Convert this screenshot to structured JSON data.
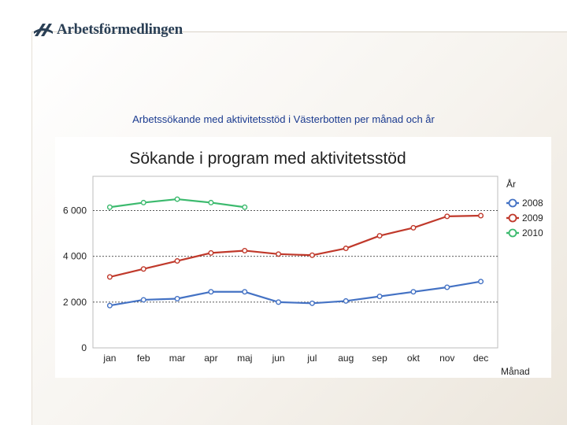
{
  "brand": {
    "name": "Arbetsförmedlingen",
    "logo_icon": "crossed-stripes-logo-icon",
    "color": "#2a3f55"
  },
  "page": {
    "title": "Arbetssökande med aktivitetsstöd i Västerbotten per månad och år"
  },
  "chart_data": {
    "type": "line",
    "title": "Sökande i program med aktivitetsstöd",
    "xlabel": "Månad",
    "ylabel": "",
    "legend_title": "År",
    "legend_position": "right",
    "categories": [
      "jan",
      "feb",
      "mar",
      "apr",
      "maj",
      "jun",
      "jul",
      "aug",
      "sep",
      "okt",
      "nov",
      "dec"
    ],
    "y_ticks": [
      "0",
      "2 000",
      "4 000",
      "6 000"
    ],
    "ylim": [
      0,
      7500
    ],
    "grid": true,
    "series": [
      {
        "name": "2008",
        "color": "#4472c4",
        "values": [
          1850,
          2100,
          2150,
          2450,
          2450,
          2000,
          1950,
          2050,
          2250,
          2450,
          2650,
          2900
        ]
      },
      {
        "name": "2009",
        "color": "#c0392b",
        "values": [
          3100,
          3450,
          3800,
          4150,
          4250,
          4100,
          4050,
          4350,
          4900,
          5250,
          5750,
          5780
        ]
      },
      {
        "name": "2010",
        "color": "#3cba6e",
        "values": [
          6150,
          6350,
          6500,
          6350,
          6150,
          null,
          null,
          null,
          null,
          null,
          null,
          null
        ]
      }
    ]
  }
}
